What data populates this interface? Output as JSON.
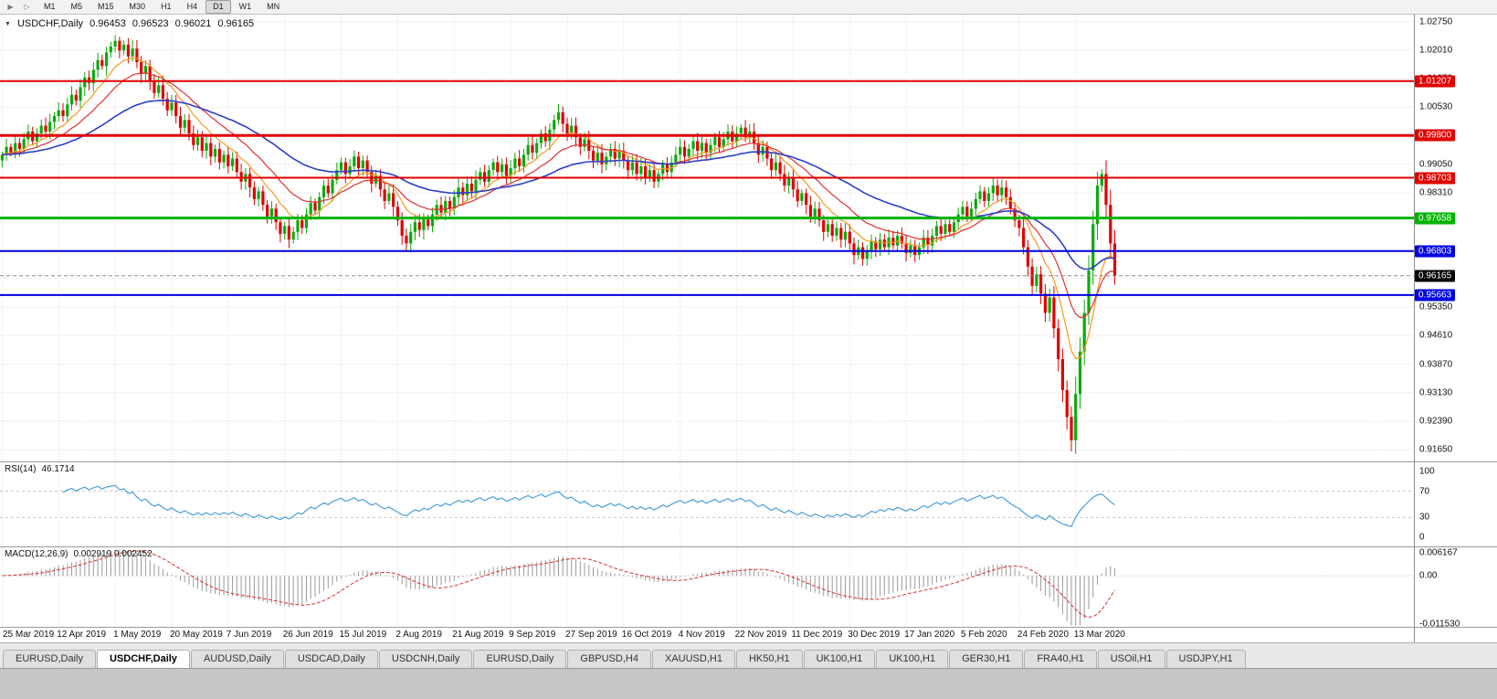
{
  "icons": {
    "symbol_dropdown": "▼",
    "auto_scroll": "▶",
    "chart_shift": "▷"
  },
  "toolbar": {
    "timeframes": [
      "M1",
      "M5",
      "M15",
      "M30",
      "H1",
      "H4",
      "D1",
      "W1",
      "MN"
    ],
    "active_timeframe": "D1"
  },
  "chart": {
    "title": "USDCHF,Daily",
    "open": "0.96453",
    "high": "0.96523",
    "low": "0.96021",
    "close": "0.96165"
  },
  "price_axis": {
    "ticks": [
      "1.02750",
      "1.02010",
      "1.01270",
      "1.00530",
      "0.99790",
      "0.99050",
      "0.98310",
      "0.97570",
      "0.96830",
      "0.96090",
      "0.95350",
      "0.94610",
      "0.93870",
      "0.93130",
      "0.92390",
      "0.91650"
    ]
  },
  "levels": {
    "hlines": [
      {
        "price": 1.01207,
        "label": "1.01207",
        "color": "#e00000",
        "width": 2
      },
      {
        "price": 0.998,
        "label": "0.99800",
        "color": "#e00000",
        "width": 3
      },
      {
        "price": 0.98703,
        "label": "0.98703",
        "color": "#e00000",
        "width": 2
      },
      {
        "price": 0.97658,
        "label": "0.97658",
        "color": "#00b400",
        "width": 3
      },
      {
        "price": 0.96803,
        "label": "0.96803",
        "color": "#0000e0",
        "width": 2
      },
      {
        "price": 0.95663,
        "label": "0.95663",
        "color": "#0000e0",
        "width": 2
      }
    ],
    "current_price": {
      "price": 0.96165,
      "label": "0.96165",
      "color": "#000000"
    }
  },
  "rsi_panel": {
    "title": "RSI(14)",
    "value": "46.1714",
    "axis_labels": [
      "100",
      "70",
      "30",
      "0"
    ],
    "axis_values": [
      100,
      70,
      30,
      0
    ],
    "levels": [
      70,
      30
    ],
    "line_color": "#4a9fdc"
  },
  "macd_panel": {
    "title": "MACD(12,26,9)",
    "value": "0.002919 0.002452",
    "axis_labels": [
      "0.006167",
      "0.00",
      "-0.011530"
    ],
    "axis_values": [
      0.006167,
      0,
      -0.01153
    ],
    "histogram_color": "#9a9a9a",
    "signal_color": "#d23535"
  },
  "time_axis": {
    "dates": [
      "25 Mar 2019",
      "12 Apr 2019",
      "1 May 2019",
      "20 May 2019",
      "7 Jun 2019",
      "26 Jun 2019",
      "15 Jul 2019",
      "2 Aug 2019",
      "21 Aug 2019",
      "9 Sep 2019",
      "27 Sep 2019",
      "16 Oct 2019",
      "4 Nov 2019",
      "22 Nov 2019",
      "11 Dec 2019",
      "30 Dec 2019",
      "17 Jan 2020",
      "5 Feb 2020",
      "24 Feb 2020",
      "13 Mar 2020"
    ],
    "bars_per_label": 13
  },
  "tabs": {
    "items": [
      {
        "label": "EURUSD,Daily"
      },
      {
        "label": "USDCHF,Daily",
        "active": true
      },
      {
        "label": "AUDUSD,Daily"
      },
      {
        "label": "USDCAD,Daily"
      },
      {
        "label": "USDCNH,Daily"
      },
      {
        "label": "EURUSD,Daily"
      },
      {
        "label": "GBPUSD,H4"
      },
      {
        "label": "XAUUSD,H1"
      },
      {
        "label": "HK50,H1"
      },
      {
        "label": "UK100,H1"
      },
      {
        "label": "UK100,H1"
      },
      {
        "label": "GER30,H1"
      },
      {
        "label": "FRA40,H1"
      },
      {
        "label": "USOil,H1"
      },
      {
        "label": "USDJPY,H1"
      }
    ]
  },
  "chart_data": {
    "type": "candlestick",
    "symbol": "USDCHF",
    "timeframe": "Daily",
    "title": "USDCHF,Daily",
    "y_range": [
      0.9135,
      1.0293
    ],
    "right_margin_ratio": 0.21,
    "up_color": "#0caa0c",
    "down_color": "#e00000",
    "closes": [
      0.993,
      0.995,
      0.9935,
      0.996,
      0.9945,
      0.997,
      0.999,
      0.9965,
      0.9985,
      1.0005,
      0.999,
      1.0015,
      1.003,
      1.0045,
      1.003,
      1.006,
      1.0085,
      1.007,
      1.0105,
      1.013,
      1.0115,
      1.015,
      1.0175,
      1.016,
      1.0195,
      1.021,
      1.0225,
      1.02,
      1.0215,
      1.0185,
      1.0205,
      1.017,
      1.014,
      1.016,
      1.012,
      1.009,
      1.011,
      1.0075,
      1.0045,
      1.0065,
      1.003,
      1.0,
      1.002,
      0.9985,
      0.9955,
      0.9975,
      0.994,
      0.996,
      0.9925,
      0.9945,
      0.991,
      0.993,
      0.99,
      0.992,
      0.9885,
      0.986,
      0.988,
      0.9845,
      0.9815,
      0.9835,
      0.98,
      0.977,
      0.979,
      0.9755,
      0.9725,
      0.9745,
      0.971,
      0.973,
      0.976,
      0.974,
      0.9775,
      0.9805,
      0.9785,
      0.982,
      0.985,
      0.983,
      0.9865,
      0.989,
      0.991,
      0.988,
      0.99,
      0.9925,
      0.9895,
      0.9915,
      0.9885,
      0.9855,
      0.9875,
      0.984,
      0.981,
      0.983,
      0.9795,
      0.976,
      0.972,
      0.97,
      0.973,
      0.9755,
      0.9735,
      0.9765,
      0.9745,
      0.9775,
      0.98,
      0.978,
      0.981,
      0.979,
      0.982,
      0.9845,
      0.9825,
      0.9855,
      0.9835,
      0.9865,
      0.9885,
      0.986,
      0.989,
      0.991,
      0.9885,
      0.9905,
      0.9875,
      0.9895,
      0.992,
      0.99,
      0.993,
      0.9955,
      0.9935,
      0.996,
      0.9985,
      0.9965,
      0.9995,
      1.002,
      1.004,
      1.001,
      0.9985,
      1.0005,
      0.9975,
      0.995,
      0.997,
      0.994,
      0.9915,
      0.9935,
      0.9905,
      0.9925,
      0.9945,
      0.992,
      0.994,
      0.9915,
      0.989,
      0.991,
      0.988,
      0.99,
      0.987,
      0.989,
      0.986,
      0.988,
      0.9905,
      0.9885,
      0.991,
      0.993,
      0.995,
      0.9925,
      0.9945,
      0.9965,
      0.994,
      0.996,
      0.9935,
      0.9955,
      0.9975,
      0.995,
      0.997,
      0.999,
      0.9965,
      0.9985,
      1.0,
      0.9975,
      0.999,
      0.996,
      0.993,
      0.995,
      0.992,
      0.989,
      0.991,
      0.988,
      0.985,
      0.987,
      0.984,
      0.981,
      0.983,
      0.98,
      0.977,
      0.979,
      0.976,
      0.973,
      0.975,
      0.972,
      0.974,
      0.971,
      0.973,
      0.97,
      0.967,
      0.969,
      0.966,
      0.968,
      0.9705,
      0.9685,
      0.971,
      0.969,
      0.9715,
      0.9695,
      0.972,
      0.97,
      0.9675,
      0.9695,
      0.967,
      0.969,
      0.9715,
      0.9695,
      0.972,
      0.9745,
      0.9725,
      0.975,
      0.973,
      0.9755,
      0.9775,
      0.9795,
      0.977,
      0.979,
      0.9815,
      0.9835,
      0.981,
      0.983,
      0.985,
      0.9825,
      0.9845,
      0.982,
      0.979,
      0.976,
      0.974,
      0.969,
      0.964,
      0.959,
      0.962,
      0.957,
      0.952,
      0.956,
      0.948,
      0.94,
      0.932,
      0.925,
      0.919,
      0.931,
      0.942,
      0.952,
      0.963,
      0.975,
      0.985,
      0.988,
      0.98,
      0.97,
      0.96165
    ],
    "moving_averages": [
      {
        "period": 10,
        "color": "#f59a23",
        "width": 1.2
      },
      {
        "period": 20,
        "color": "#e03030",
        "width": 1.2
      },
      {
        "period": 50,
        "color": "#2b3fc4",
        "width": 1.6
      }
    ],
    "rsi_period": 14,
    "macd_params": [
      12,
      26,
      9
    ],
    "macd_range": [
      -0.0122,
      0.0068
    ]
  }
}
